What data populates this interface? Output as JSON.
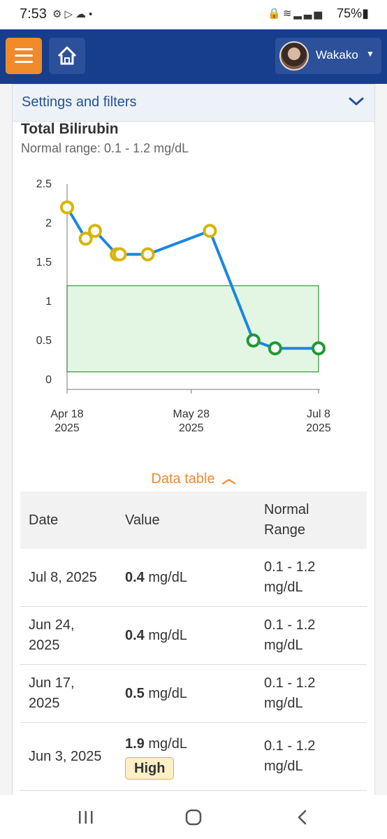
{
  "status_bar": {
    "time": "7:53",
    "battery": "75%",
    "left_icons": [
      "settings-icon",
      "play-icon",
      "cloud-icon",
      "dot-icon"
    ],
    "right_icons": [
      "lock-icon",
      "wifi-icon",
      "signal-icon",
      "battery-icon"
    ]
  },
  "header": {
    "menu_icon": "hamburger-icon",
    "home_icon": "home-icon",
    "user_name": "Wakako",
    "accent_color": "#f18a2b",
    "bar_color": "#173e8c"
  },
  "settings": {
    "label": "Settings and filters"
  },
  "test": {
    "title": "Total Bilirubin",
    "normal_range": "Normal range: 0.1 - 1.2 mg/dL"
  },
  "chart_data": {
    "type": "line",
    "y_ticks": [
      "2.5",
      "2",
      "1.5",
      "1",
      "0.5",
      "0"
    ],
    "x_ticks": [
      {
        "line1": "Apr 18",
        "line2": "2025"
      },
      {
        "line1": "May 28",
        "line2": "2025"
      },
      {
        "line1": "Jul 8",
        "line2": "2025"
      }
    ],
    "ylim": [
      0,
      2.5
    ],
    "xlim": [
      "2025-04-18",
      "2025-07-08"
    ],
    "normal_range": [
      0.1,
      1.2
    ],
    "series": [
      {
        "x": [
          "2025-04-18",
          "2025-04-24",
          "2025-04-27",
          "2025-05-04",
          "2025-05-05",
          "2025-05-14",
          "2025-06-03",
          "2025-06-17",
          "2025-06-24",
          "2025-07-08"
        ],
        "values": [
          2.2,
          1.8,
          1.9,
          1.6,
          1.6,
          1.6,
          1.9,
          0.5,
          0.4,
          0.4
        ]
      }
    ],
    "colors": {
      "line": "#1c86e0",
      "high_point": "#d6b600",
      "normal_point": "#1f9a35",
      "band_fill": "#e3f6e3",
      "band_stroke": "#54a85a"
    }
  },
  "data_toggle": {
    "label": "Data table"
  },
  "table": {
    "headers": {
      "date": "Date",
      "value": "Value",
      "range_line1": "Normal",
      "range_line2": "Range"
    },
    "rows": [
      {
        "date": "Jul 8, 2025",
        "value": "0.4",
        "unit": "mg/dL",
        "badge": "",
        "range_line1": "0.1 - 1.2",
        "range_line2": "mg/dL"
      },
      {
        "date": "Jun 24, 2025",
        "value": "0.4",
        "unit": "mg/dL",
        "badge": "",
        "range_line1": "0.1 - 1.2",
        "range_line2": "mg/dL"
      },
      {
        "date": "Jun 17, 2025",
        "value": "0.5",
        "unit": "mg/dL",
        "badge": "",
        "range_line1": "0.1 - 1.2",
        "range_line2": "mg/dL"
      },
      {
        "date": "Jun 3, 2025",
        "value": "1.9",
        "unit": "mg/dL",
        "badge": "High",
        "range_line1": "0.1 - 1.2",
        "range_line2": "mg/dL"
      }
    ]
  },
  "nav_bar": {
    "icons": [
      "recent-apps-icon",
      "home-circle-icon",
      "back-icon"
    ]
  }
}
